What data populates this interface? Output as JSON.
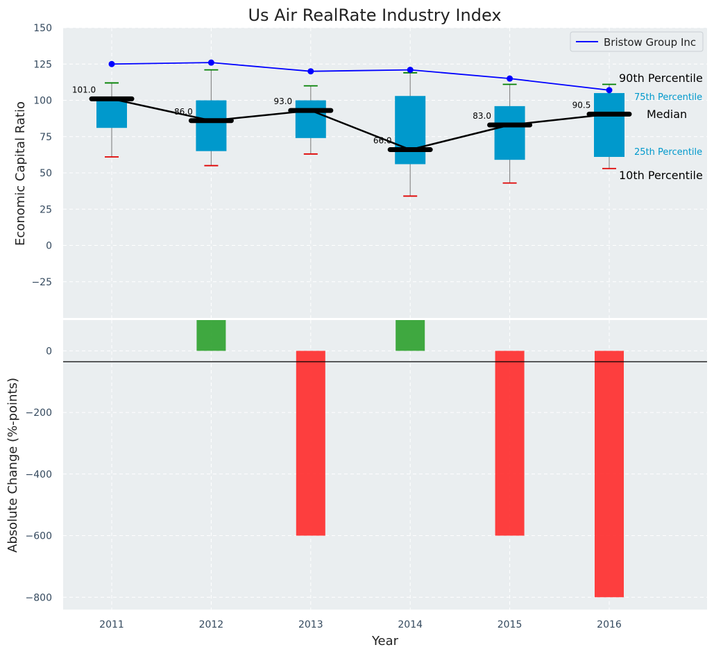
{
  "chart_data": {
    "type": "box",
    "title": "Us Air RealRate Industry Index",
    "xlabel": "Year",
    "categories": [
      "2011",
      "2012",
      "2013",
      "2014",
      "2015",
      "2016"
    ],
    "top": {
      "ylabel": "Economic Capital Ratio",
      "ylim": [
        -50,
        150
      ],
      "yticks": [
        -25,
        0,
        25,
        50,
        75,
        100,
        125,
        150
      ],
      "ytick_labels": [
        "−25",
        "0",
        "25",
        "50",
        "75",
        "100",
        "125",
        "150"
      ],
      "boxes": [
        {
          "p10": 61,
          "q1": 81,
          "median": 101.0,
          "q3": 101,
          "p90": 112,
          "median_label": "101.0"
        },
        {
          "p10": 55,
          "q1": 65,
          "median": 86.0,
          "q3": 100,
          "p90": 121,
          "median_label": "86.0"
        },
        {
          "p10": 63,
          "q1": 74,
          "median": 93.0,
          "q3": 100,
          "p90": 110,
          "median_label": "93.0"
        },
        {
          "p10": 34,
          "q1": 56,
          "median": 66.0,
          "q3": 103,
          "p90": 119,
          "median_label": "66.0"
        },
        {
          "p10": 43,
          "q1": 59,
          "median": 83.0,
          "q3": 96,
          "p90": 111,
          "median_label": "83.0"
        },
        {
          "p10": 53,
          "q1": 61,
          "median": 90.5,
          "q3": 105,
          "p90": 111,
          "median_label": "90.5"
        }
      ],
      "company_series": {
        "name": "Bristow Group Inc",
        "values": [
          125,
          126,
          120,
          121,
          115,
          107
        ],
        "color": "#0000ff"
      },
      "box_color": "#0099cc",
      "legend_position": "top-right",
      "annotations": {
        "p90": "90th Percentile",
        "q3": "75th Percentile",
        "median": "Median",
        "q1": "25th Percentile",
        "p10": "10th Percentile"
      }
    },
    "bottom": {
      "ylabel": "Absolute Change (%-points)",
      "ylim": [
        -840,
        100
      ],
      "yticks": [
        -800,
        -600,
        -400,
        -200,
        0
      ],
      "ytick_labels": [
        "−800",
        "−600",
        "−400",
        "−200",
        "0"
      ],
      "values": [
        0,
        100,
        -600,
        100,
        -600,
        -800
      ],
      "positive_color": "#2ca02c",
      "negative_color": "#ff2a2a"
    }
  }
}
